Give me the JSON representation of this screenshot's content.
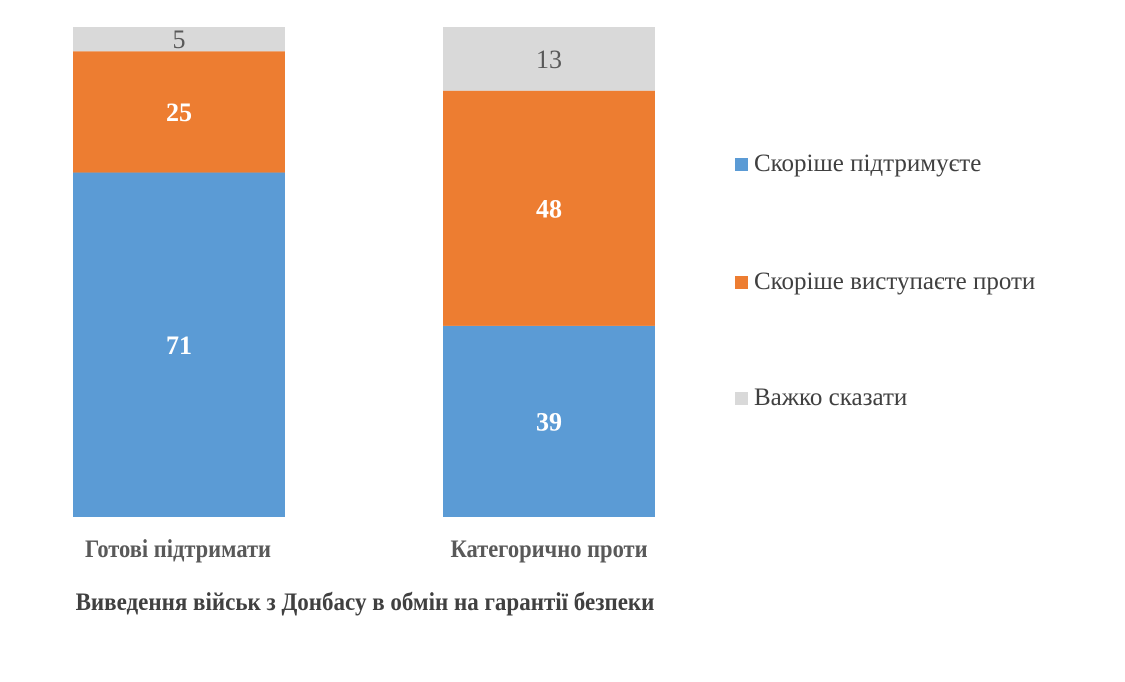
{
  "chart_data": {
    "type": "bar",
    "stacked": "percent",
    "categories": [
      "Готові підтримати",
      "Категорично проти"
    ],
    "xlabel": "Виведення військ з Донбасу в обмін на гарантії безпеки",
    "ylabel": "",
    "grid": false,
    "legend_position": "right",
    "series": [
      {
        "name": "Скоріше підтримуєте",
        "values": [
          71,
          39
        ],
        "color": "#5B9BD5",
        "label_color": "#FFFFFF"
      },
      {
        "name": "Скоріше виступаєте проти",
        "values": [
          25,
          48
        ],
        "color": "#ED7D31",
        "label_color": "#FFFFFF"
      },
      {
        "name": "Важко сказати",
        "values": [
          5,
          13
        ],
        "color": "#D9D9D9",
        "label_color": "#595959"
      }
    ]
  }
}
